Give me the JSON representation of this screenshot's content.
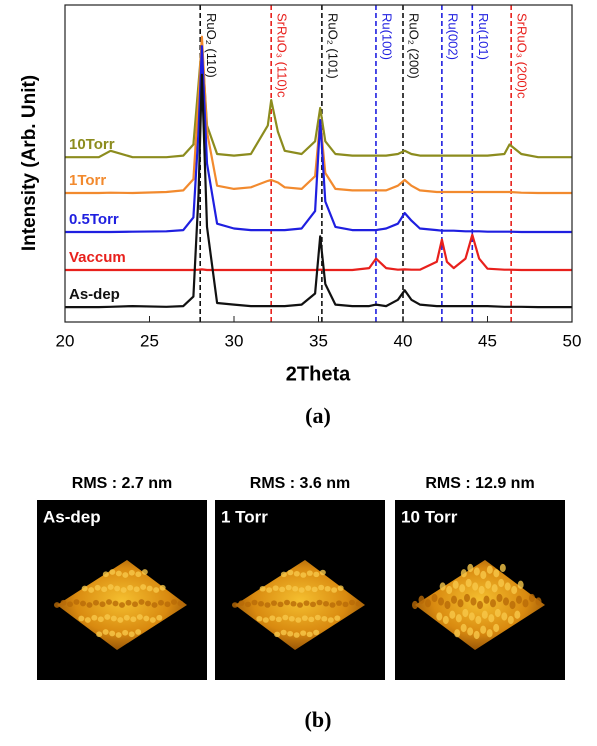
{
  "chart_data": {
    "type": "line",
    "ylabel": "Intensity (Arb. Unit)",
    "xlabel": "2Theta",
    "xlim": [
      20,
      50
    ],
    "xticks": [
      20,
      25,
      30,
      35,
      40,
      45,
      50
    ],
    "ylim": [
      0,
      100
    ],
    "x": [
      20,
      22,
      22.7,
      24,
      26,
      27,
      27.6,
      27.9,
      28.1,
      28.4,
      29,
      30,
      31,
      32,
      32.2,
      32.6,
      33,
      34,
      34.8,
      35.1,
      35.4,
      36,
      37,
      38,
      38.4,
      39,
      39.7,
      40.1,
      40.5,
      41,
      42,
      42.3,
      42.6,
      43,
      43.7,
      44.1,
      44.5,
      45,
      46,
      46.3,
      47,
      48,
      50
    ],
    "series": [
      {
        "name": "10Torr",
        "color": "#8c8c1e",
        "values": [
          52,
          52,
          54,
          52,
          52,
          52.5,
          56,
          75,
          88,
          62,
          53,
          52.5,
          53,
          62,
          70,
          60,
          54,
          53,
          57,
          67.5,
          57,
          53,
          52.5,
          52.5,
          52.5,
          52.5,
          53,
          54,
          53,
          52.5,
          52.5,
          52.5,
          52.5,
          52.5,
          52.5,
          52.5,
          52.5,
          52.5,
          53,
          56,
          53,
          52,
          52
        ]
      },
      {
        "name": "1Torr",
        "color": "#f28a2e",
        "values": [
          40.7,
          40.7,
          40.8,
          40.7,
          41,
          41.5,
          45,
          70,
          90,
          60,
          43,
          42,
          42.5,
          44.5,
          44.8,
          44,
          42.5,
          42,
          46,
          63.7,
          47,
          42,
          41.5,
          41.5,
          41.5,
          41.5,
          43,
          44.8,
          43,
          41.5,
          41,
          41,
          41,
          41,
          41,
          41,
          41,
          41,
          41,
          41,
          40.8,
          40.7,
          40.7
        ]
      },
      {
        "name": "0.5Torr",
        "color": "#1f1fe0",
        "values": [
          28.4,
          28.4,
          28.4,
          28.5,
          28.6,
          29,
          33,
          60,
          87,
          50,
          31,
          29.5,
          29,
          29,
          29,
          29,
          29,
          29.5,
          35,
          63.7,
          38,
          30,
          29,
          29,
          29,
          29.5,
          31,
          34.4,
          32,
          29.5,
          29,
          28.8,
          28.8,
          28.8,
          28.6,
          28.6,
          28.6,
          28.5,
          28.5,
          28.5,
          28.4,
          28.4,
          28.4
        ]
      },
      {
        "name": "Vaccum",
        "color": "#e8201c",
        "values": [
          16.4,
          16.4,
          16.4,
          16.4,
          16.4,
          16.4,
          16.4,
          16.5,
          16.6,
          16.4,
          16.4,
          16.4,
          16.4,
          16.4,
          16.4,
          16.4,
          16.4,
          16.4,
          16.4,
          16.5,
          16.4,
          16.4,
          16.4,
          17,
          20,
          17,
          16.5,
          16.6,
          16.5,
          16.5,
          19,
          26,
          19,
          17,
          20,
          27.5,
          20,
          16.8,
          16.5,
          16.5,
          16.4,
          16.4,
          16.4
        ]
      },
      {
        "name": "As-dep",
        "color": "#111111",
        "values": [
          4.7,
          4.7,
          4.8,
          5,
          4.8,
          5,
          8,
          40,
          78,
          30,
          6,
          5.5,
          5,
          5,
          5,
          5,
          5,
          5.5,
          9,
          27,
          12,
          5.5,
          5,
          5,
          5.5,
          5,
          7,
          10,
          7,
          5.5,
          5,
          5,
          5,
          5,
          5,
          5,
          5,
          5,
          4.8,
          4.8,
          4.8,
          4.7,
          4.7
        ]
      }
    ],
    "reference_lines": [
      {
        "x": 28.0,
        "label": "RuO₂ (110)",
        "color": "#111111"
      },
      {
        "x": 32.2,
        "label": "SrRuO₃ (110)c",
        "color": "#e8201c"
      },
      {
        "x": 35.2,
        "label": "RuO₂ (101)",
        "color": "#111111"
      },
      {
        "x": 38.4,
        "label": "Ru(100)",
        "color": "#1f1fe0"
      },
      {
        "x": 40.0,
        "label": "RuO₂ (200)",
        "color": "#111111"
      },
      {
        "x": 42.3,
        "label": "Ru(002)",
        "color": "#1f1fe0"
      },
      {
        "x": 44.1,
        "label": "Ru(101)",
        "color": "#1f1fe0"
      },
      {
        "x": 46.4,
        "label": "SrRuO₃ (200)c",
        "color": "#e8201c"
      }
    ],
    "caption": "(a)"
  },
  "afm": {
    "panels": [
      {
        "title": "RMS : 2.7 nm",
        "label": "As-dep"
      },
      {
        "title": "RMS : 3.6 nm",
        "label": "1 Torr"
      },
      {
        "title": "RMS : 12.9 nm",
        "label": "10 Torr"
      }
    ],
    "caption": "(b)"
  }
}
